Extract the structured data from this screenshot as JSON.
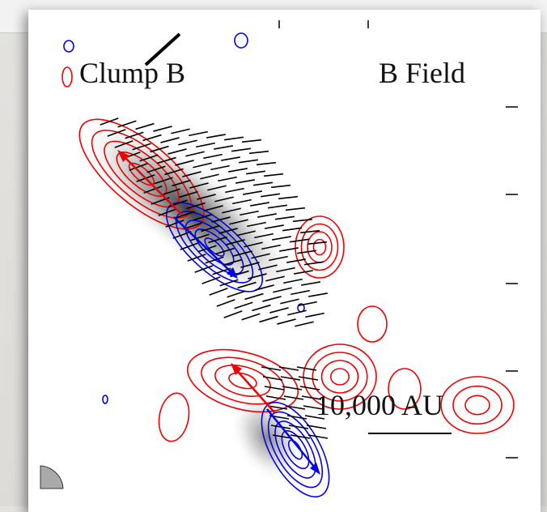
{
  "figure": {
    "label_left": "Clump B",
    "label_right": "B Field",
    "scale_label": "10,000 AU"
  }
}
